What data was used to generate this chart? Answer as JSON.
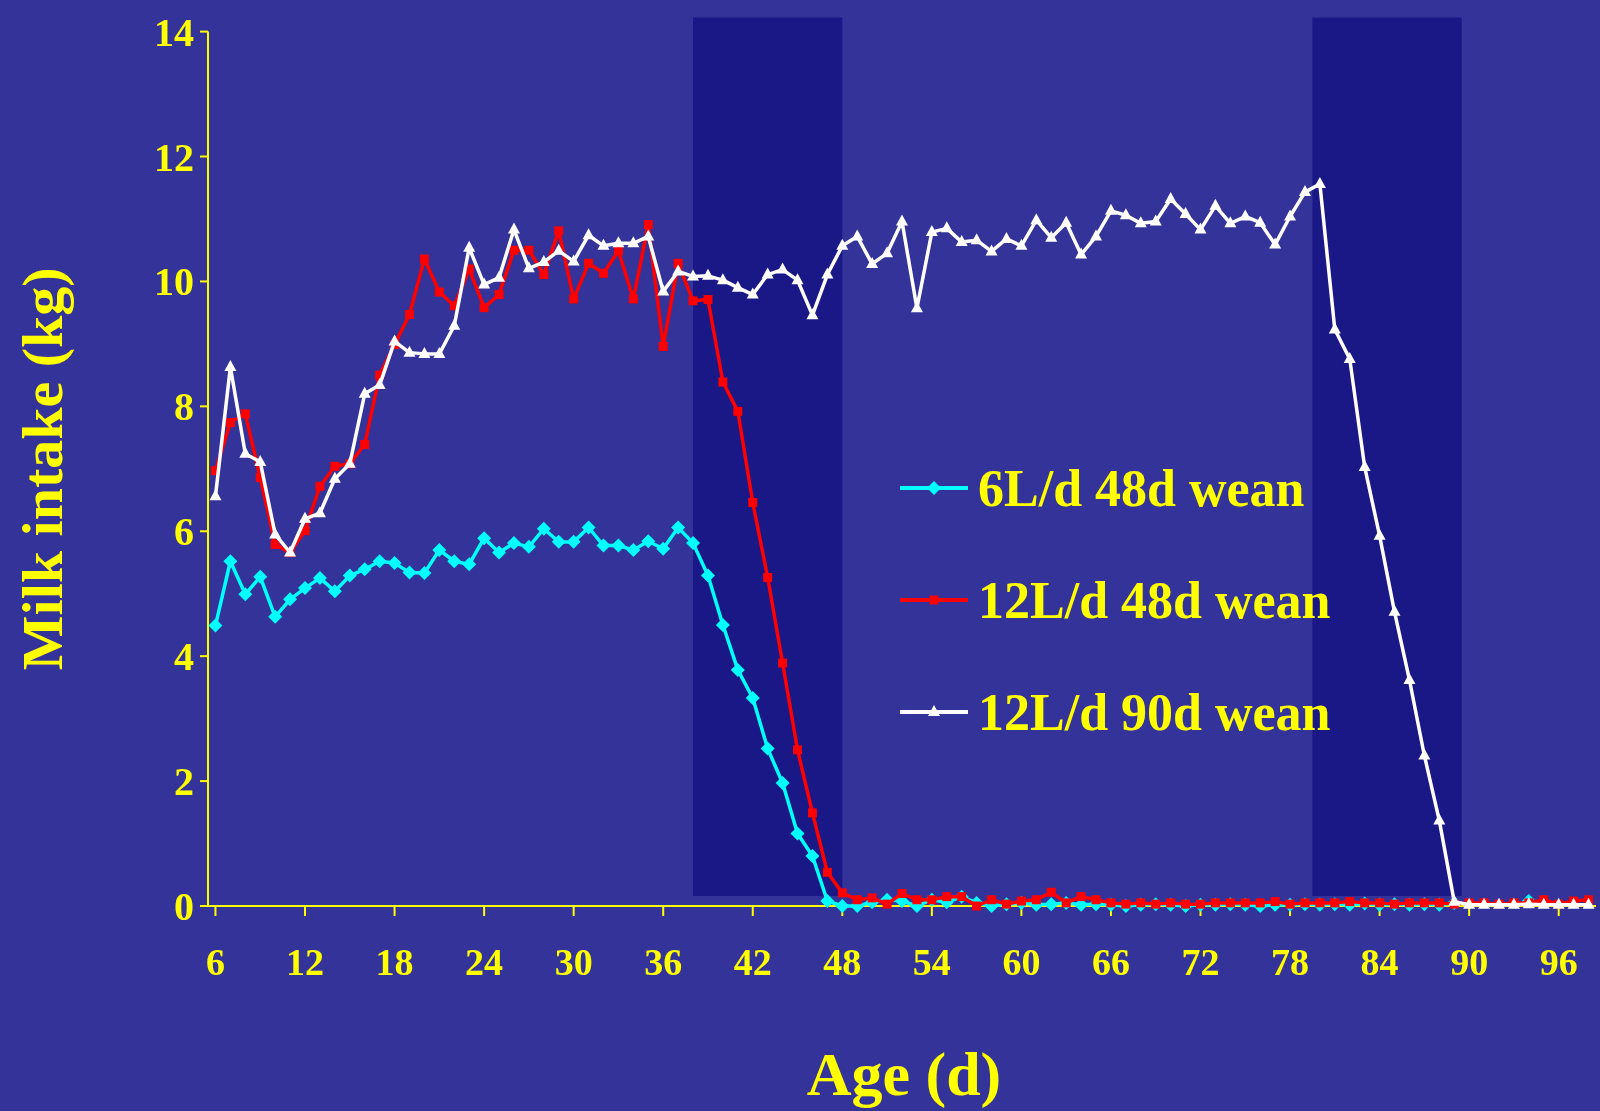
{
  "chart_data": {
    "type": "line",
    "xlabel": "Age (d)",
    "ylabel": "Milk intake (kg)",
    "x": [
      6,
      7,
      8,
      9,
      10,
      11,
      12,
      13,
      14,
      15,
      16,
      17,
      18,
      19,
      20,
      21,
      22,
      23,
      24,
      25,
      26,
      27,
      28,
      29,
      30,
      31,
      32,
      33,
      34,
      35,
      36,
      37,
      38,
      39,
      40,
      41,
      42,
      43,
      44,
      45,
      46,
      47,
      48,
      49,
      50,
      51,
      52,
      53,
      54,
      55,
      56,
      57,
      58,
      59,
      60,
      61,
      62,
      63,
      64,
      65,
      66,
      67,
      68,
      69,
      70,
      71,
      72,
      73,
      74,
      75,
      76,
      77,
      78,
      79,
      80,
      81,
      82,
      83,
      84,
      85,
      86,
      87,
      88,
      89,
      90,
      91,
      92,
      93,
      94,
      95,
      96,
      97,
      98
    ],
    "series": [
      {
        "name": "6L/d 48d wean",
        "color": "#00ffff",
        "marker": "diamond",
        "values": [
          4.49,
          5.52,
          4.99,
          5.27,
          4.63,
          4.91,
          5.09,
          5.25,
          5.04,
          5.29,
          5.39,
          5.52,
          5.49,
          5.34,
          5.33,
          5.7,
          5.52,
          5.47,
          5.89,
          5.66,
          5.81,
          5.75,
          6.04,
          5.83,
          5.83,
          6.06,
          5.77,
          5.77,
          5.7,
          5.84,
          5.72,
          6.06,
          5.81,
          5.29,
          4.5,
          3.78,
          3.33,
          2.52,
          1.97,
          1.16,
          0.8,
          0.08,
          0,
          0,
          0.06,
          0.1,
          0.08,
          0,
          0.1,
          0.06,
          0.15,
          0.05,
          0,
          0.03,
          0.05,
          0.02,
          0.03,
          0.05,
          0.02,
          0.03,
          0.02,
          0,
          0.02,
          0.03,
          0.02,
          0,
          0.02,
          0.02,
          0.03,
          0.02,
          0,
          0.02,
          0.02,
          0.03,
          0.02,
          0.03,
          0.02,
          0.04,
          0.02,
          0.03,
          0.02,
          0.03,
          0.02,
          0.05,
          null,
          null,
          null,
          null,
          0.08,
          null,
          null,
          null,
          null
        ]
      },
      {
        "name": "12L/d 48d wean",
        "color": "#ff0000",
        "marker": "square",
        "values": [
          6.97,
          7.74,
          7.88,
          6.86,
          5.79,
          5.66,
          6.01,
          6.72,
          7.04,
          7.08,
          7.39,
          8.5,
          8.99,
          9.47,
          10.36,
          9.83,
          9.61,
          10.2,
          9.58,
          9.79,
          10.5,
          10.5,
          10.11,
          10.81,
          9.72,
          10.29,
          10.13,
          10.49,
          9.72,
          10.91,
          8.96,
          10.29,
          9.69,
          9.71,
          8.39,
          7.92,
          6.46,
          5.26,
          3.89,
          2.5,
          1.49,
          0.54,
          0.21,
          0.1,
          0.13,
          0.03,
          0.2,
          0.1,
          0.1,
          0.15,
          0.15,
          0,
          0.1,
          0.03,
          0.08,
          0.1,
          0.22,
          0.05,
          0.15,
          0.1,
          0.05,
          0.03,
          0.05,
          0.03,
          0.05,
          0.03,
          0.03,
          0.05,
          0.05,
          0.05,
          0.05,
          0.07,
          0.03,
          0.05,
          0.05,
          0.05,
          0.07,
          0.05,
          0.05,
          0.03,
          0.05,
          0.05,
          0.05,
          0.03,
          0.05,
          0.05,
          0.03,
          0.05,
          0.05,
          0.1,
          0.03,
          0.08,
          0.1
        ]
      },
      {
        "name": "12L/d 90d wean",
        "color": "#ffffff",
        "marker": "triangle",
        "values": [
          6.56,
          8.63,
          7.24,
          7.11,
          5.95,
          5.66,
          6.2,
          6.29,
          6.84,
          7.08,
          8.2,
          8.34,
          9.04,
          8.86,
          8.84,
          8.84,
          9.29,
          10.54,
          9.95,
          10.06,
          10.83,
          10.21,
          10.31,
          10.49,
          10.32,
          10.74,
          10.57,
          10.61,
          10.61,
          10.72,
          9.84,
          10.16,
          10.08,
          10.09,
          10.02,
          9.9,
          9.79,
          10.11,
          10.19,
          10.02,
          9.46,
          10.11,
          10.57,
          10.72,
          10.28,
          10.45,
          10.96,
          9.57,
          10.79,
          10.85,
          10.63,
          10.66,
          10.48,
          10.68,
          10.57,
          10.98,
          10.7,
          10.94,
          10.43,
          10.72,
          11.13,
          11.06,
          10.93,
          10.96,
          11.32,
          11.08,
          10.83,
          11.21,
          10.93,
          11.04,
          10.94,
          10.59,
          11.04,
          11.43,
          11.56,
          9.23,
          8.76,
          7.03,
          5.93,
          4.71,
          3.62,
          2.41,
          1.37,
          0.07,
          0.02,
          0.02,
          0.02,
          0.02,
          0.03,
          0.02,
          0.02,
          0.02,
          0.02
        ]
      }
    ],
    "xlim": [
      5.5,
      98.5
    ],
    "ylim": [
      0,
      14
    ],
    "yticks": [
      0,
      2,
      4,
      6,
      8,
      10,
      12,
      14
    ],
    "xticks": [
      6,
      12,
      18,
      24,
      30,
      36,
      42,
      48,
      54,
      60,
      66,
      72,
      78,
      84,
      90,
      96
    ],
    "bands": [
      {
        "axis": "x",
        "from": 38,
        "to": 48,
        "color": "#1a1787"
      },
      {
        "axis": "x",
        "from": 79.5,
        "to": 89.5,
        "color": "#1a1787"
      }
    ],
    "grid": false,
    "legend": "right",
    "line_style": "solid"
  }
}
